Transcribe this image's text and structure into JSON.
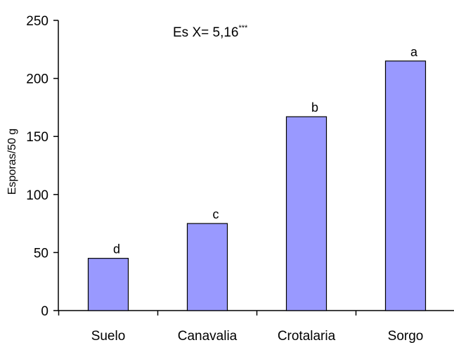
{
  "chart_data": {
    "type": "bar",
    "categories": [
      "Suelo",
      "Canavalia",
      "Crotalaria",
      "Sorgo"
    ],
    "values": [
      45,
      75,
      167,
      215
    ],
    "data_labels": [
      "d",
      "c",
      "b",
      "a"
    ],
    "title": "",
    "xlabel": "",
    "ylabel": "Esporas/50 g",
    "ylim": [
      0,
      250
    ],
    "yticks": [
      0,
      50,
      100,
      150,
      200,
      250
    ],
    "grid": false,
    "annotation": {
      "text": "Es X= 5,16",
      "superscript": "***"
    },
    "colors": {
      "bar_fill": "#9999ff",
      "bar_stroke": "#000000",
      "axis": "#000000"
    }
  }
}
